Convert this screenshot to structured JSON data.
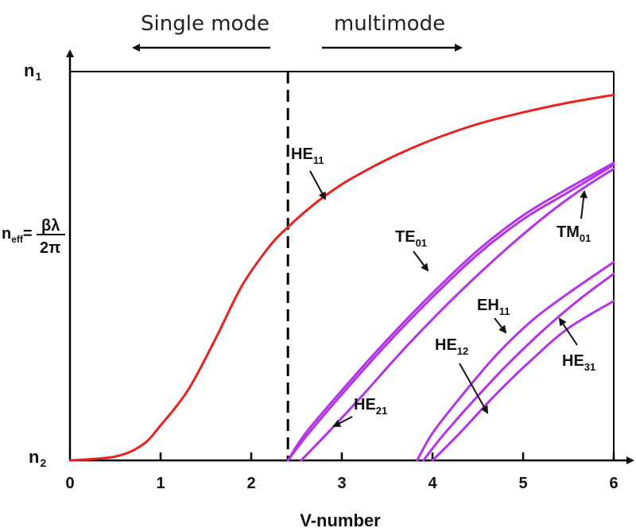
{
  "chart_data": {
    "type": "line",
    "xlabel": "V-number",
    "x_ticks": [
      "0",
      "1",
      "2",
      "3",
      "4",
      "5",
      "6"
    ],
    "xlim": [
      0,
      6
    ],
    "ylim": [
      0,
      1
    ],
    "y_tick_labels": {
      "top": {
        "main": "n",
        "sub": "1"
      },
      "mid": {
        "main": "n",
        "sub": "eff",
        "eq": "=",
        "num": "βλ",
        "den": "2π"
      },
      "bottom": {
        "main": "n",
        "sub": "2"
      }
    },
    "cutoff": {
      "x": 2.405,
      "style": "dashed"
    },
    "regions": {
      "left": "Single mode",
      "right": "multimode"
    },
    "colors": {
      "fundamental": "#e8221e",
      "higher": "#b433e8",
      "axis": "#000000"
    },
    "series": [
      {
        "name": "HE11",
        "label_main": "HE",
        "label_sub": "11",
        "color": "#e8221e",
        "x": [
          0,
          0.5,
          0.8,
          1.0,
          1.3,
          1.6,
          1.9,
          2.2,
          2.405,
          2.7,
          3.0,
          3.3,
          3.6,
          4.0,
          4.5,
          5.0,
          5.5,
          6.0
        ],
        "y": [
          0.0,
          0.01,
          0.04,
          0.09,
          0.18,
          0.31,
          0.45,
          0.55,
          0.6,
          0.66,
          0.71,
          0.75,
          0.785,
          0.825,
          0.865,
          0.895,
          0.92,
          0.94
        ]
      },
      {
        "name": "HE21",
        "label_main": "HE",
        "label_sub": "21",
        "color": "#b433e8",
        "x": [
          2.405,
          2.6,
          3.0,
          3.5,
          4.0,
          4.5,
          5.0,
          5.5,
          6.0
        ],
        "y": [
          0.0,
          0.06,
          0.17,
          0.3,
          0.42,
          0.53,
          0.62,
          0.69,
          0.76
        ]
      },
      {
        "name": "TE01",
        "label_main": "TE",
        "label_sub": "01",
        "color": "#b433e8",
        "x": [
          2.405,
          2.6,
          3.0,
          3.5,
          4.0,
          4.5,
          5.0,
          5.5,
          6.0
        ],
        "y": [
          0.0,
          0.07,
          0.18,
          0.31,
          0.43,
          0.54,
          0.63,
          0.7,
          0.765
        ]
      },
      {
        "name": "TM01",
        "label_main": "TM",
        "label_sub": "01",
        "color": "#b433e8",
        "x": [
          2.55,
          2.8,
          3.2,
          3.7,
          4.2,
          4.7,
          5.2,
          5.6,
          6.0
        ],
        "y": [
          0.0,
          0.06,
          0.16,
          0.29,
          0.41,
          0.52,
          0.62,
          0.69,
          0.75
        ]
      },
      {
        "name": "EH11",
        "label_main": "EH",
        "label_sub": "11",
        "color": "#b433e8",
        "x": [
          3.83,
          4.0,
          4.3,
          4.7,
          5.1,
          5.5,
          6.0
        ],
        "y": [
          0.0,
          0.07,
          0.16,
          0.27,
          0.36,
          0.43,
          0.51
        ]
      },
      {
        "name": "HE12",
        "label_main": "HE",
        "label_sub": "12",
        "color": "#b433e8",
        "x": [
          3.9,
          4.1,
          4.4,
          4.8,
          5.2,
          5.6,
          6.0
        ],
        "y": [
          0.0,
          0.06,
          0.14,
          0.24,
          0.33,
          0.41,
          0.48
        ]
      },
      {
        "name": "HE31",
        "label_main": "HE",
        "label_sub": "31",
        "color": "#b433e8",
        "x": [
          4.0,
          4.3,
          4.7,
          5.1,
          5.5,
          6.0
        ],
        "y": [
          0.0,
          0.07,
          0.17,
          0.26,
          0.34,
          0.41
        ]
      }
    ]
  }
}
